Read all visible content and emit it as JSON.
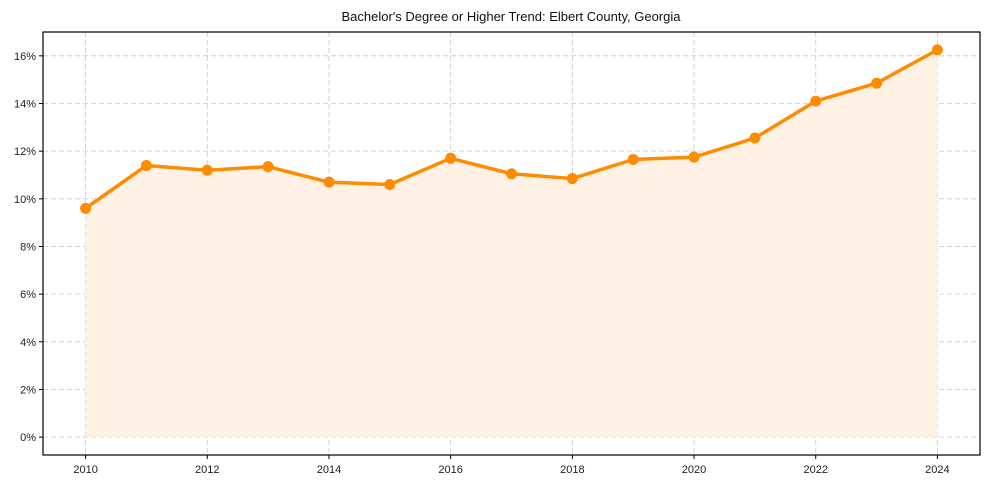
{
  "chart_data": {
    "type": "line",
    "title": "Bachelor's Degree or Higher Trend: Elbert County, Georgia",
    "xlabel": "",
    "ylabel": "",
    "x": [
      2010,
      2011,
      2012,
      2013,
      2014,
      2015,
      2016,
      2017,
      2018,
      2019,
      2020,
      2021,
      2022,
      2023,
      2024
    ],
    "series": [
      {
        "name": "Bachelor's Degree or Higher",
        "values": [
          9.6,
          11.4,
          11.2,
          11.35,
          10.7,
          10.6,
          11.7,
          11.05,
          10.85,
          11.65,
          11.75,
          12.55,
          14.1,
          14.85,
          16.25
        ],
        "color": "#FF8C00",
        "fill_color": "#FFF1E3",
        "marker": "circle",
        "area_fill": true
      }
    ],
    "xticks": [
      2010,
      2012,
      2014,
      2016,
      2018,
      2020,
      2022,
      2024
    ],
    "xtick_labels": [
      "2010",
      "2012",
      "2014",
      "2016",
      "2018",
      "2020",
      "2022",
      "2024"
    ],
    "yticks": [
      0,
      2,
      4,
      6,
      8,
      10,
      12,
      14,
      16
    ],
    "ytick_labels": [
      "0%",
      "2%",
      "4%",
      "6%",
      "8%",
      "10%",
      "12%",
      "14%",
      "16%"
    ],
    "xlim": [
      2009.3,
      2024.7
    ],
    "ylim": [
      -0.75,
      17.0
    ],
    "grid": true,
    "grid_style": "dashed",
    "legend": null
  }
}
